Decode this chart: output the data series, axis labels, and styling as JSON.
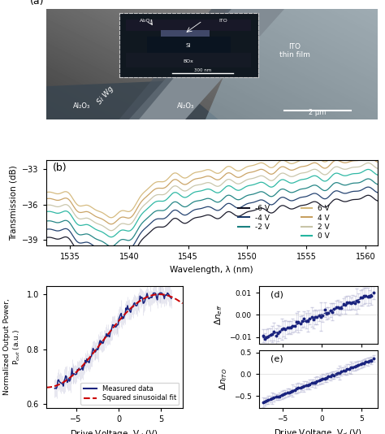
{
  "title_a": "(a)",
  "title_b": "(b)",
  "title_d": "(d)",
  "title_e": "(e)",
  "panel_b": {
    "xlabel": "Wavelength, λ (nm)",
    "ylabel": "Transmission (dB)",
    "xlim": [
      1533,
      1561
    ],
    "ylim": [
      -39.5,
      -32.2
    ],
    "yticks": [
      -39,
      -36,
      -33
    ],
    "xticks": [
      1535,
      1540,
      1545,
      1550,
      1555,
      1560
    ],
    "legend_labels_left": [
      "-6 V",
      "-4 V",
      "-2 V"
    ],
    "legend_labels_right": [
      "6 V",
      "4 V",
      "2 V",
      "0 V"
    ],
    "line_colors": [
      "#111122",
      "#1a3a6a",
      "#1a8080",
      "#25b5a0",
      "#c8c4a8",
      "#c8a060",
      "#d4b87a"
    ],
    "voltage_offsets": [
      -2.2,
      -1.5,
      -0.8,
      0.0,
      0.55,
      1.1,
      1.65
    ]
  },
  "panel_c": {
    "xlabel": "Drive Voltage, V_d (V)",
    "ylabel": "Normalized Output Power, P_out (a.u.)",
    "xlim": [
      -8.5,
      7.5
    ],
    "ylim": [
      0.585,
      1.03
    ],
    "yticks": [
      0.6,
      0.8,
      1
    ],
    "xticks": [
      -5,
      0,
      5
    ],
    "legend_measured": "Measured data",
    "legend_fit": "Squared sinusoidal fit",
    "measured_color": "#1a237e",
    "fit_color": "#cc0000",
    "x_peak": 4.8,
    "fit_start": -8.5,
    "fit_end": 7.5
  },
  "panel_d": {
    "xlim": [
      -8,
      7
    ],
    "ylim": [
      -0.013,
      0.013
    ],
    "yticks": [
      -0.01,
      0,
      0.01
    ],
    "xticks": [
      -5,
      0,
      5
    ],
    "line_color": "#1a237e",
    "y_start": -0.0105,
    "y_end": 0.0095
  },
  "panel_e": {
    "xlim": [
      -8,
      7
    ],
    "ylim": [
      -0.78,
      0.55
    ],
    "yticks": [
      -0.5,
      0,
      0.5
    ],
    "xticks": [
      -5,
      0,
      5
    ],
    "line_color": "#1a237e",
    "y_start": -0.65,
    "y_end": 0.35
  },
  "sem_bg_color": "#8aa4b0",
  "sem_stripe_color": "#606878",
  "sem_ito_color": "#9ab4c0",
  "sem_shadow_color": "#3a4a52",
  "bg_color": "#ffffff"
}
